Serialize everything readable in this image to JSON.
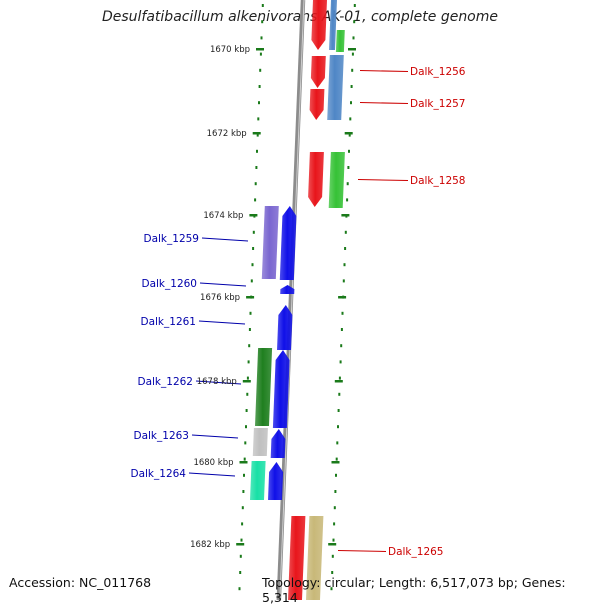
{
  "title": "Desulfatibacillum alkenivorans AK-01, complete genome",
  "accession": "Accession: NC_011768",
  "topology": "Topology: circular; Length: 6,517,073 bp; Genes: 5,314",
  "colors": {
    "backbone": "#8c8c8c",
    "tick": "#1a7a1a",
    "label_forward": "#cc0000",
    "label_reverse": "#0000aa",
    "red": "#e8151b",
    "blue": "#1010e8",
    "steelblue": "#4f86c6",
    "green": "#36c236",
    "lavender": "#7a66d0",
    "darkgreen": "#1f7f1f",
    "lightgray": "#c0c0c0",
    "teal": "#18e0a6",
    "khaki": "#c8b878"
  },
  "kbp_labels": [
    "1670 kbp",
    "1672 kbp",
    "1674 kbp",
    "1676 kbp",
    "1678 kbp",
    "1680 kbp",
    "1682 kbp"
  ],
  "genes_forward": [
    "Dalk_1256",
    "Dalk_1257",
    "Dalk_1258",
    "Dalk_1265"
  ],
  "genes_reverse": [
    "Dalk_1259",
    "Dalk_1260",
    "Dalk_1261",
    "Dalk_1262",
    "Dalk_1263",
    "Dalk_1264"
  ]
}
